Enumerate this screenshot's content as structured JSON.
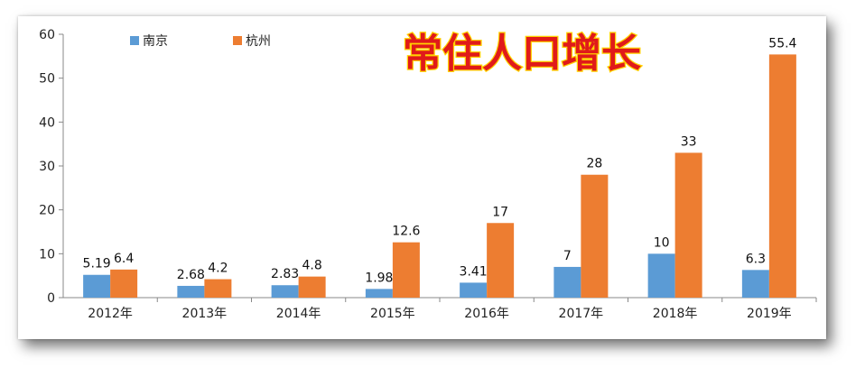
{
  "colors": {
    "nanjing": "#5b9bd5",
    "hangzhou": "#ed7d31",
    "title_fill": "#e01a1a",
    "title_stroke": "#ffd200"
  },
  "chart_data": {
    "type": "bar",
    "title": "常住人口增长",
    "categories": [
      "2012年",
      "2013年",
      "2014年",
      "2015年",
      "2016年",
      "2017年",
      "2018年",
      "2019年"
    ],
    "series": [
      {
        "name": "南京",
        "values": [
          5.19,
          2.68,
          2.83,
          1.98,
          3.41,
          7,
          10,
          6.3
        ],
        "labels": [
          "5.19",
          "2.68",
          "2.83",
          "1.98",
          "3.41",
          "7",
          "10",
          "6.3"
        ]
      },
      {
        "name": "杭州",
        "values": [
          6.4,
          4.2,
          4.8,
          12.6,
          17,
          28,
          33,
          55.4
        ],
        "labels": [
          "6.4",
          "4.2",
          "4.8",
          "12.6",
          "17",
          "28",
          "33",
          "55.4"
        ]
      }
    ],
    "ylim": [
      0,
      60
    ],
    "yticks": [
      "0",
      "10",
      "20",
      "30",
      "40",
      "50",
      "60"
    ],
    "legend_position": "top-left",
    "grid": false
  }
}
